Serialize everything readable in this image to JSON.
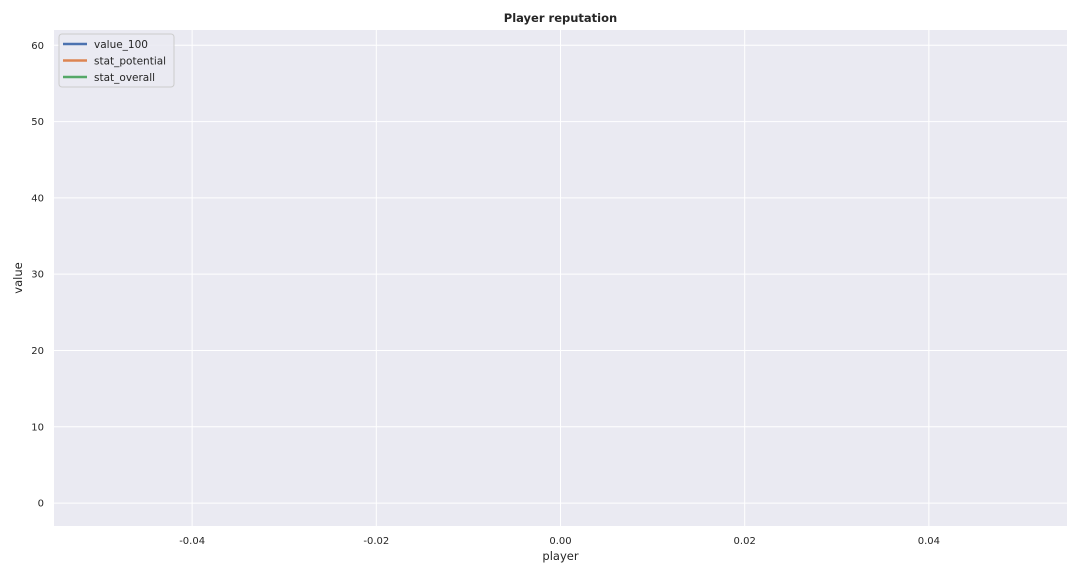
{
  "chart_data": {
    "type": "line",
    "title": "Player reputation",
    "xlabel": "player",
    "ylabel": "value",
    "xlim": [
      -0.055,
      0.055
    ],
    "ylim": [
      -3,
      62
    ],
    "xticks": [
      -0.04,
      -0.02,
      0.0,
      0.02,
      0.04
    ],
    "xtick_labels": [
      "-0.04",
      "-0.02",
      "0.00",
      "0.02",
      "0.04"
    ],
    "yticks": [
      0,
      10,
      20,
      30,
      40,
      50,
      60
    ],
    "ytick_labels": [
      "0",
      "10",
      "20",
      "30",
      "40",
      "50",
      "60"
    ],
    "grid": true,
    "legend_position": "top-left",
    "series": [
      {
        "name": "value_100",
        "color": "#4c72b0",
        "values": []
      },
      {
        "name": "stat_potential",
        "color": "#dd8452",
        "values": []
      },
      {
        "name": "stat_overall",
        "color": "#55a868",
        "values": []
      }
    ],
    "colors": {
      "plot_background": "#eaeaf2",
      "grid": "#ffffff",
      "text": "#262626"
    }
  }
}
